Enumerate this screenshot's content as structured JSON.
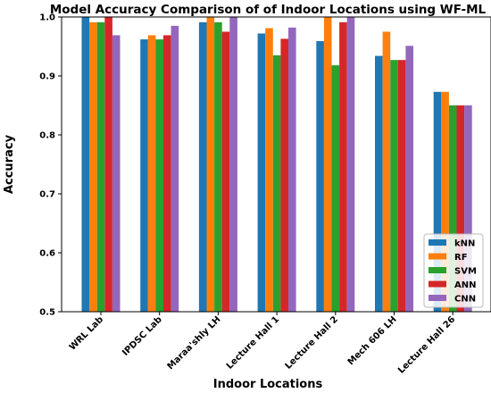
{
  "chart_data": {
    "type": "bar",
    "title": "Model Accuracy Comparison of of Indoor Locations using WF-ML",
    "xlabel": "Indoor Locations",
    "ylabel": "Accuracy",
    "ylim": [
      0.5,
      1.0
    ],
    "yticks": [
      "0.5",
      "0.6",
      "0.7",
      "0.8",
      "0.9",
      "1.0"
    ],
    "categories": [
      "WRL Lab",
      "IPDSC Lab",
      "Maraa'shly LH",
      "Lecture Hall 1",
      "Lecture Hall 2",
      "Mech 606 LH",
      "Lecture Hall 26"
    ],
    "series": [
      {
        "name": "kNN",
        "color": "#1f77b4",
        "values": [
          1.0,
          0.962,
          0.991,
          0.972,
          0.959,
          0.934,
          0.873
        ]
      },
      {
        "name": "RF",
        "color": "#ff7f0e",
        "values": [
          0.991,
          0.969,
          1.0,
          0.981,
          1.0,
          0.975,
          0.873
        ]
      },
      {
        "name": "SVM",
        "color": "#2ca02c",
        "values": [
          0.991,
          0.962,
          0.991,
          0.935,
          0.918,
          0.927,
          0.85
        ]
      },
      {
        "name": "ANN",
        "color": "#d62728",
        "values": [
          1.0,
          0.969,
          0.975,
          0.963,
          0.991,
          0.927,
          0.85
        ]
      },
      {
        "name": "CNN",
        "color": "#9467bd",
        "values": [
          0.969,
          0.985,
          1.0,
          0.982,
          1.0,
          0.951,
          0.85
        ]
      }
    ],
    "grid": false,
    "legend_position": "bottom-right"
  }
}
